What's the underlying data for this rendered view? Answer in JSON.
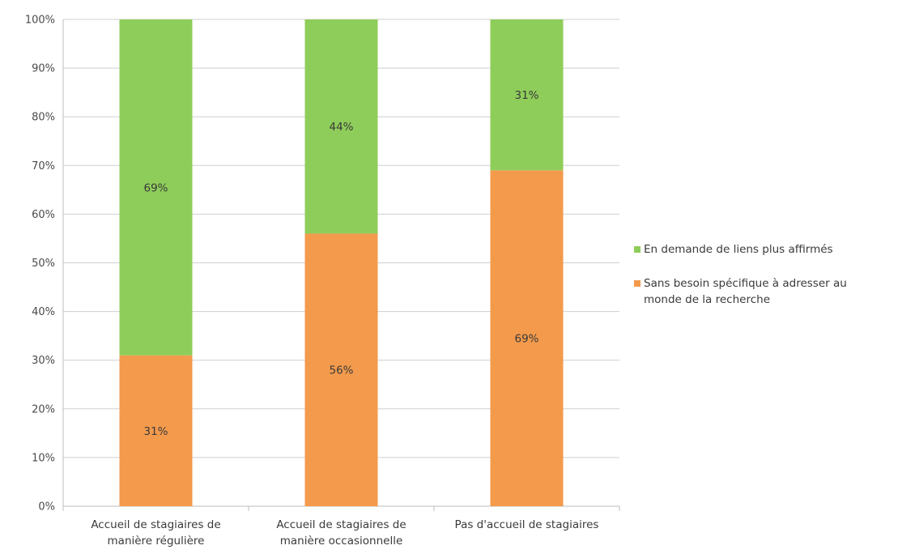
{
  "chart_data": {
    "type": "bar",
    "stacked": true,
    "percent_stacked": true,
    "categories": [
      [
        "Accueil de stagiaires de",
        "manière régulière"
      ],
      [
        "Accueil de stagiaires de",
        "manière occasionnelle"
      ],
      [
        "Pas d'accueil de stagiaires"
      ]
    ],
    "series": [
      {
        "name": "Sans besoin spécifique à adresser au monde de la recherche",
        "legend_lines": [
          "Sans besoin spécifique à adresser au",
          "monde de la recherche"
        ],
        "values": [
          31,
          56,
          69
        ],
        "labels": [
          "31%",
          "56%",
          "69%"
        ],
        "color": "#f39a4c"
      },
      {
        "name": "En demande de liens plus affirmés",
        "legend_lines": [
          "En demande de liens plus affirmés"
        ],
        "values": [
          69,
          44,
          31
        ],
        "labels": [
          "69%",
          "44%",
          "31%"
        ],
        "color": "#8fcd5a"
      }
    ],
    "y_ticks": [
      "0%",
      "10%",
      "20%",
      "30%",
      "40%",
      "50%",
      "60%",
      "70%",
      "80%",
      "90%",
      "100%"
    ],
    "ylim": [
      0,
      100
    ],
    "grid": true,
    "grid_color": "#cfcfcf",
    "legend_position": "right",
    "title": "",
    "xlabel": "",
    "ylabel": ""
  }
}
